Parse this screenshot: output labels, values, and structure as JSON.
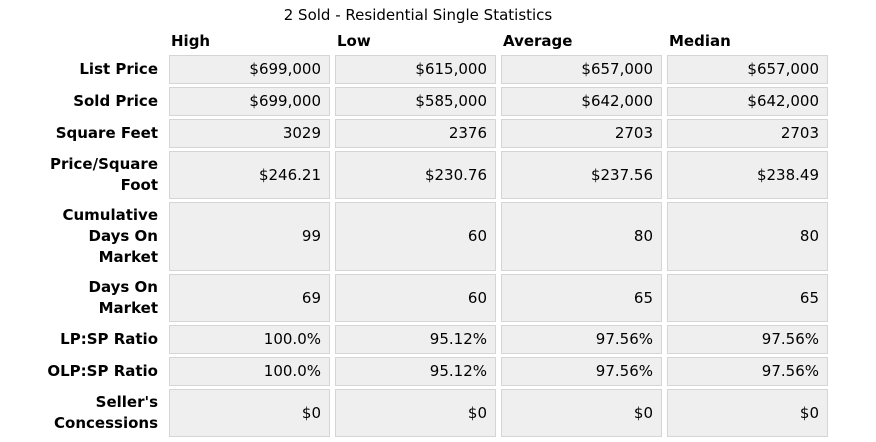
{
  "title": "2 Sold - Residential Single Statistics",
  "table": {
    "columns": [
      "High",
      "Low",
      "Average",
      "Median"
    ],
    "rows": [
      {
        "label": "List Price",
        "values": [
          "$699,000",
          "$615,000",
          "$657,000",
          "$657,000"
        ]
      },
      {
        "label": "Sold Price",
        "values": [
          "$699,000",
          "$585,000",
          "$642,000",
          "$642,000"
        ]
      },
      {
        "label": "Square Feet",
        "values": [
          "3029",
          "2376",
          "2703",
          "2703"
        ]
      },
      {
        "label": "Price/Square Foot",
        "values": [
          "$246.21",
          "$230.76",
          "$237.56",
          "$238.49"
        ]
      },
      {
        "label": "Cumulative Days On Market",
        "values": [
          "99",
          "60",
          "80",
          "80"
        ]
      },
      {
        "label": "Days On Market",
        "values": [
          "69",
          "60",
          "65",
          "65"
        ]
      },
      {
        "label": "LP:SP Ratio",
        "values": [
          "100.0%",
          "95.12%",
          "97.56%",
          "97.56%"
        ]
      },
      {
        "label": "OLP:SP Ratio",
        "values": [
          "100.0%",
          "95.12%",
          "97.56%",
          "97.56%"
        ]
      },
      {
        "label": "Seller's Concessions",
        "values": [
          "$0",
          "$0",
          "$0",
          "$0"
        ]
      }
    ]
  },
  "colors": {
    "cell_bg": "#efefef",
    "cell_border": "#d5d5d5",
    "text": "#000000",
    "page_bg": "#ffffff"
  }
}
